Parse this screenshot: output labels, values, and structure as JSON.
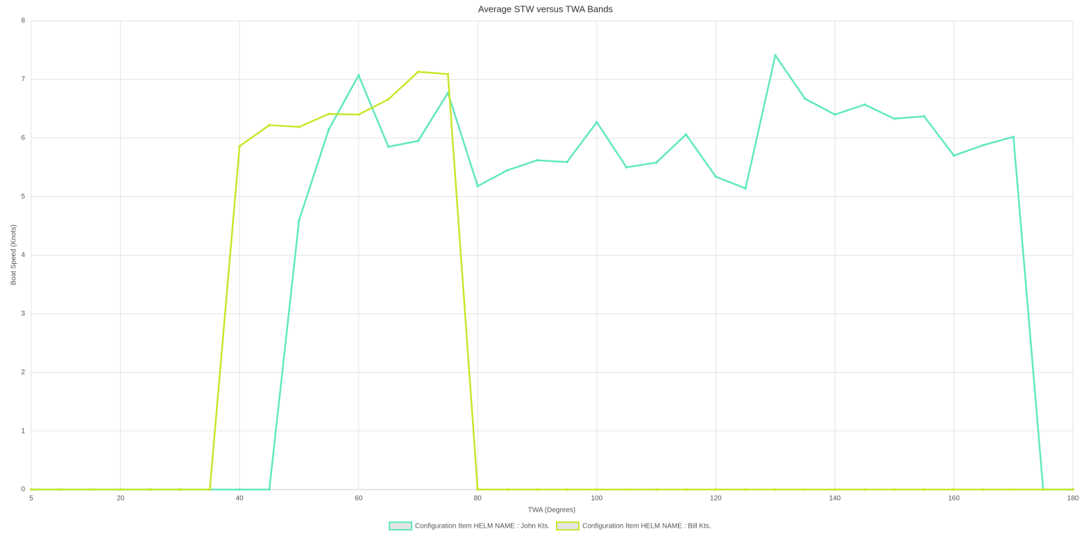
{
  "chart_data": {
    "type": "line",
    "title": "Average STW versus TWA Bands",
    "x_label": "TWA (Degrees)",
    "y_label": "Boat Speed (Knots)",
    "x": [
      5,
      10,
      15,
      20,
      25,
      30,
      35,
      40,
      45,
      50,
      55,
      60,
      65,
      70,
      75,
      80,
      85,
      90,
      95,
      100,
      105,
      110,
      115,
      120,
      125,
      130,
      135,
      140,
      145,
      150,
      155,
      160,
      165,
      170,
      175,
      180
    ],
    "series": [
      {
        "name": "Configuration Item HELM NAME : John Kts.",
        "color": "#5fe8c0",
        "values": [
          0,
          0,
          0,
          0,
          0,
          0,
          0,
          0,
          0,
          4.6,
          6.15,
          7.07,
          5.85,
          5.95,
          6.77,
          5.18,
          5.45,
          5.62,
          5.59,
          6.27,
          5.5,
          5.58,
          6.06,
          5.34,
          5.14,
          7.41,
          6.67,
          6.4,
          6.57,
          6.33,
          6.37,
          5.7,
          5.88,
          6.02,
          0,
          0
        ]
      },
      {
        "name": "Configuration Item HELM NAME : Bill Kts.",
        "color": "#c8e62a",
        "values": [
          0,
          0,
          0,
          0,
          0,
          0,
          0,
          5.86,
          6.22,
          6.19,
          6.41,
          6.4,
          6.66,
          7.13,
          7.09,
          0,
          0,
          0,
          0,
          0,
          0,
          0,
          0,
          0,
          0,
          0,
          0,
          0,
          0,
          0,
          0,
          0,
          0,
          0,
          0,
          0
        ]
      }
    ],
    "xlim": [
      5,
      180
    ],
    "xticks": [
      5,
      20,
      40,
      60,
      80,
      100,
      120,
      140,
      160,
      180
    ],
    "ylim": [
      0,
      8
    ],
    "yticks": [
      0,
      1,
      2,
      3,
      4,
      5,
      6,
      7,
      8
    ],
    "grid": true,
    "legend": "bottom"
  }
}
